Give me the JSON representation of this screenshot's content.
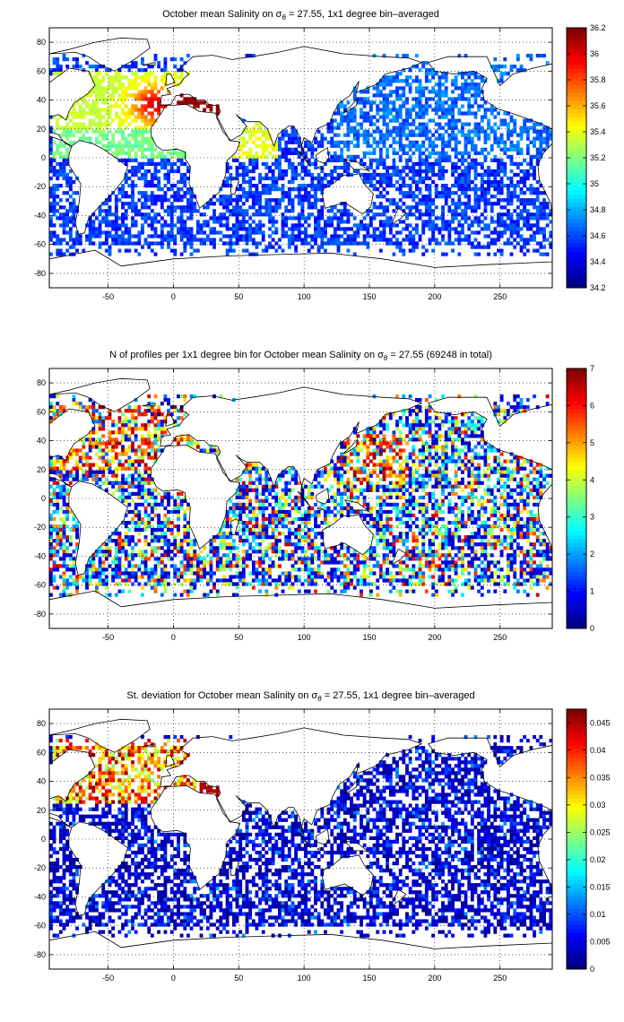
{
  "panels": [
    {
      "title": "October mean Salinity on σθ = 27.55, 1x1 degree bin–averaged",
      "colorbar": {
        "ticks": [
          "34.2",
          "34.4",
          "34.6",
          "34.8",
          "35",
          "35.2",
          "35.4",
          "35.6",
          "35.8",
          "36",
          "36.2"
        ],
        "range": [
          34.2,
          36.2
        ]
      },
      "field": "salinity"
    },
    {
      "title": "N of profiles per 1x1 degree bin for October mean Salinity on σθ = 27.55 (69248 in total)",
      "colorbar": {
        "ticks": [
          "0",
          "1",
          "2",
          "3",
          "4",
          "5",
          "6",
          "7"
        ],
        "range": [
          0,
          7
        ]
      },
      "field": "count"
    },
    {
      "title": "St. deviation for October mean Salinity on σθ = 27.55, 1x1 degree bin–averaged",
      "colorbar": {
        "ticks": [
          "0",
          "0.005",
          "0.01",
          "0.015",
          "0.02",
          "0.025",
          "0.03",
          "0.035",
          "0.04",
          "0.045"
        ],
        "range": [
          0,
          0.0475
        ]
      },
      "field": "stdev"
    }
  ],
  "axes": {
    "x_ticks": [
      "-50",
      "0",
      "50",
      "100",
      "150",
      "200",
      "250"
    ],
    "x_values": [
      -50,
      0,
      50,
      100,
      150,
      200,
      250
    ],
    "x_range": [
      -95,
      290
    ],
    "y_ticks": [
      "80",
      "60",
      "40",
      "20",
      "0",
      "-20",
      "-40",
      "-60",
      "-80"
    ],
    "y_values": [
      80,
      60,
      40,
      20,
      0,
      -20,
      -40,
      -60,
      -80
    ],
    "y_range": [
      -90,
      90
    ],
    "grid": "dotted"
  },
  "colormap": "jet"
}
